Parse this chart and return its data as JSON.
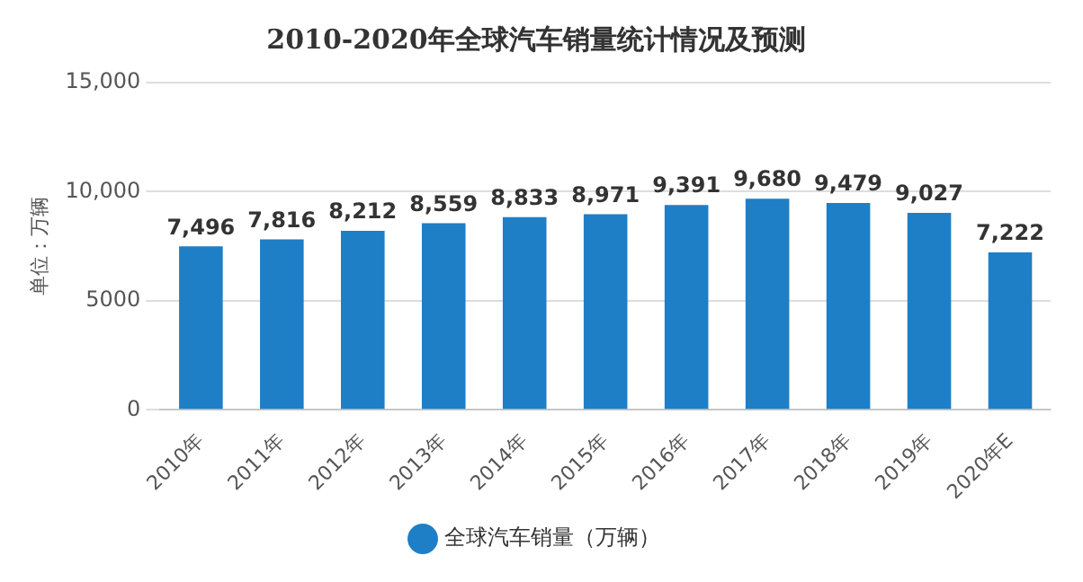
{
  "chart_data": {
    "type": "bar",
    "title": "2010-2020年全球汽车销量统计情况及预测",
    "ylabel": "单位：万辆",
    "categories": [
      "2010年",
      "2011年",
      "2012年",
      "2013年",
      "2014年",
      "2015年",
      "2016年",
      "2017年",
      "2018年",
      "2019年",
      "2020年E"
    ],
    "series": [
      {
        "name": "全球汽车销量（万辆）",
        "color": "#1e7fc6",
        "values": [
          7496,
          7816,
          8212,
          8559,
          8833,
          8971,
          9391,
          9680,
          9479,
          9027,
          7222
        ],
        "value_labels": [
          "7,496",
          "7,816",
          "8,212",
          "8,559",
          "8,833",
          "8,971",
          "9,391",
          "9,680",
          "9,479",
          "9,027",
          "7,222"
        ]
      }
    ],
    "ylim": [
      0,
      15000
    ],
    "yticks": [
      0,
      5000,
      {
        "value": 10000,
        "label": "10,000"
      },
      {
        "value": 15000,
        "label": "15,000"
      }
    ],
    "grid": "y",
    "legend": "bottom"
  }
}
